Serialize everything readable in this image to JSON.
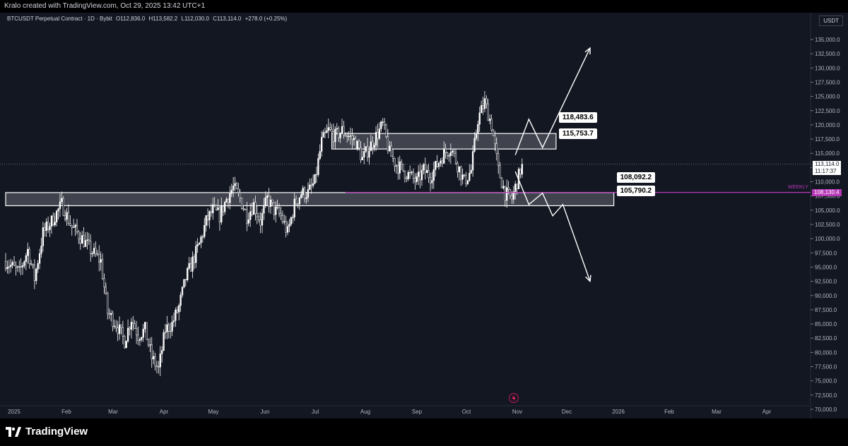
{
  "header": {
    "author_line": "Kralo created with TradingView.com, Oct 29, 2025 13:42 UTC+1"
  },
  "symbol": {
    "name": "BTCUSDT Perpetual Contract · 1D · Bybit",
    "open": "O112,836.0",
    "high": "H113,582.2",
    "low": "L112,030.0",
    "close": "C113,114.0",
    "change": "+278.0 (+0.25%)"
  },
  "currency": "USDT",
  "colors": {
    "background": "#131722",
    "candle": "#ffffff",
    "weekly_line": "#b638b6",
    "zone_fill": "#787b86"
  },
  "current_price": {
    "value": "113,114.0",
    "countdown": "11:17:37"
  },
  "weekly": {
    "label": "WEEKLY",
    "value": "108,130.4"
  },
  "annotations": {
    "upper_top": "118,483.6",
    "upper_bottom": "115,753.7",
    "lower_top": "108,092.2",
    "lower_bottom": "105,790.2"
  },
  "footer": {
    "brand": "TradingView"
  },
  "chart_data": {
    "type": "candlestick",
    "title": "BTCUSDT Perpetual Contract · 1D · Bybit",
    "x_ticks": [
      "2025",
      "Feb",
      "Mar",
      "Apr",
      "May",
      "Jun",
      "Jul",
      "Aug",
      "Sep",
      "Oct",
      "Nov",
      "Dec",
      "2026",
      "Feb",
      "Mar",
      "Apr"
    ],
    "y_ticks": [
      "135,000.0",
      "132,500.0",
      "130,000.0",
      "127,500.0",
      "125,000.0",
      "122,500.0",
      "120,000.0",
      "117,500.0",
      "115,000.0",
      "112,500.0",
      "110,000.0",
      "107,500.0",
      "105,000.0",
      "102,500.0",
      "100,000.0",
      "97,500.0",
      "95,000.0",
      "92,500.0",
      "90,000.0",
      "87,500.0",
      "85,000.0",
      "82,500.0",
      "80,000.0",
      "77,500.0",
      "75,000.0",
      "72,500.0",
      "70,000.0"
    ],
    "ylim": [
      68500,
      137500
    ],
    "trend_path": [
      [
        0,
        96000
      ],
      [
        8,
        94000
      ],
      [
        13,
        98000
      ],
      [
        17,
        93000
      ],
      [
        22,
        101000
      ],
      [
        27,
        103000
      ],
      [
        33,
        106000
      ],
      [
        39,
        102000
      ],
      [
        45,
        100000
      ],
      [
        50,
        98000
      ],
      [
        56,
        96000
      ],
      [
        60,
        87000
      ],
      [
        65,
        85000
      ],
      [
        70,
        82000
      ],
      [
        74,
        86000
      ],
      [
        78,
        83000
      ],
      [
        82,
        84000
      ],
      [
        86,
        79000
      ],
      [
        90,
        77000
      ],
      [
        94,
        84000
      ],
      [
        98,
        85000
      ],
      [
        102,
        88000
      ],
      [
        106,
        93000
      ],
      [
        110,
        96000
      ],
      [
        114,
        99000
      ],
      [
        118,
        103000
      ],
      [
        122,
        105000
      ],
      [
        126,
        104000
      ],
      [
        130,
        107000
      ],
      [
        134,
        109000
      ],
      [
        138,
        107000
      ],
      [
        142,
        104000
      ],
      [
        146,
        106000
      ],
      [
        150,
        103000
      ],
      [
        154,
        107000
      ],
      [
        158,
        105000
      ],
      [
        162,
        104000
      ],
      [
        166,
        101000
      ],
      [
        170,
        106000
      ],
      [
        174,
        108000
      ],
      [
        178,
        108000
      ],
      [
        182,
        110000
      ],
      [
        186,
        117000
      ],
      [
        190,
        119000
      ],
      [
        194,
        118000
      ],
      [
        198,
        119000
      ],
      [
        202,
        118000
      ],
      [
        206,
        117000
      ],
      [
        210,
        114000
      ],
      [
        214,
        116000
      ],
      [
        218,
        118000
      ],
      [
        222,
        120000
      ],
      [
        226,
        115000
      ],
      [
        230,
        113000
      ],
      [
        234,
        112000
      ],
      [
        238,
        111000
      ],
      [
        242,
        110000
      ],
      [
        246,
        112000
      ],
      [
        250,
        111000
      ],
      [
        254,
        113000
      ],
      [
        258,
        115000
      ],
      [
        262,
        116000
      ],
      [
        266,
        113000
      ],
      [
        270,
        110000
      ],
      [
        274,
        112000
      ],
      [
        278,
        121000
      ],
      [
        282,
        124000
      ],
      [
        286,
        120000
      ],
      [
        290,
        112000
      ],
      [
        294,
        108000
      ],
      [
        298,
        107000
      ],
      [
        302,
        111000
      ],
      [
        304,
        113114
      ]
    ],
    "zones": [
      {
        "x_from": 192,
        "x_to": 324,
        "top": 118483.6,
        "bottom": 115753.7
      },
      {
        "x_from": 0,
        "x_to": 358,
        "top": 108092.2,
        "bottom": 105790.2
      }
    ],
    "weekly_line": {
      "x_from": 200,
      "value": 108130.4
    },
    "projections": [
      [
        [
          300,
          114700
        ],
        [
          308,
          121000
        ],
        [
          316,
          116000
        ],
        [
          344,
          133500
        ]
      ],
      [
        [
          300,
          111800
        ],
        [
          308,
          106000
        ],
        [
          316,
          108000
        ],
        [
          322,
          104000
        ],
        [
          328,
          106000
        ],
        [
          344,
          92500
        ]
      ]
    ]
  }
}
